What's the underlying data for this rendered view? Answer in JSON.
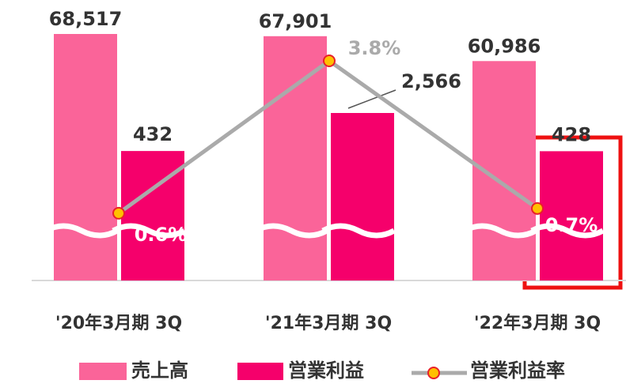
{
  "chart_data": {
    "type": "bar",
    "categories": [
      "'20年3月期 3Q",
      "'21年3月期 3Q",
      "'22年3月期 3Q"
    ],
    "series": [
      {
        "name": "売上高",
        "color": "#fa6499",
        "values": [
          68517,
          67901,
          60986
        ],
        "value_labels": [
          "68,517",
          "67,901",
          "60,986"
        ]
      },
      {
        "name": "営業利益",
        "color": "#f5006b",
        "values": [
          432,
          2566,
          428
        ],
        "value_labels": [
          "432",
          "2,566",
          "428"
        ],
        "scale": "log"
      },
      {
        "name": "営業利益率",
        "type": "line",
        "color": "#aaaaaa",
        "marker_color": "#ffc000",
        "axis": "y2",
        "values": [
          0.6,
          3.8,
          0.7
        ],
        "value_labels": [
          "0.6%",
          "3.8%",
          "0.7%"
        ]
      }
    ]
  }
}
